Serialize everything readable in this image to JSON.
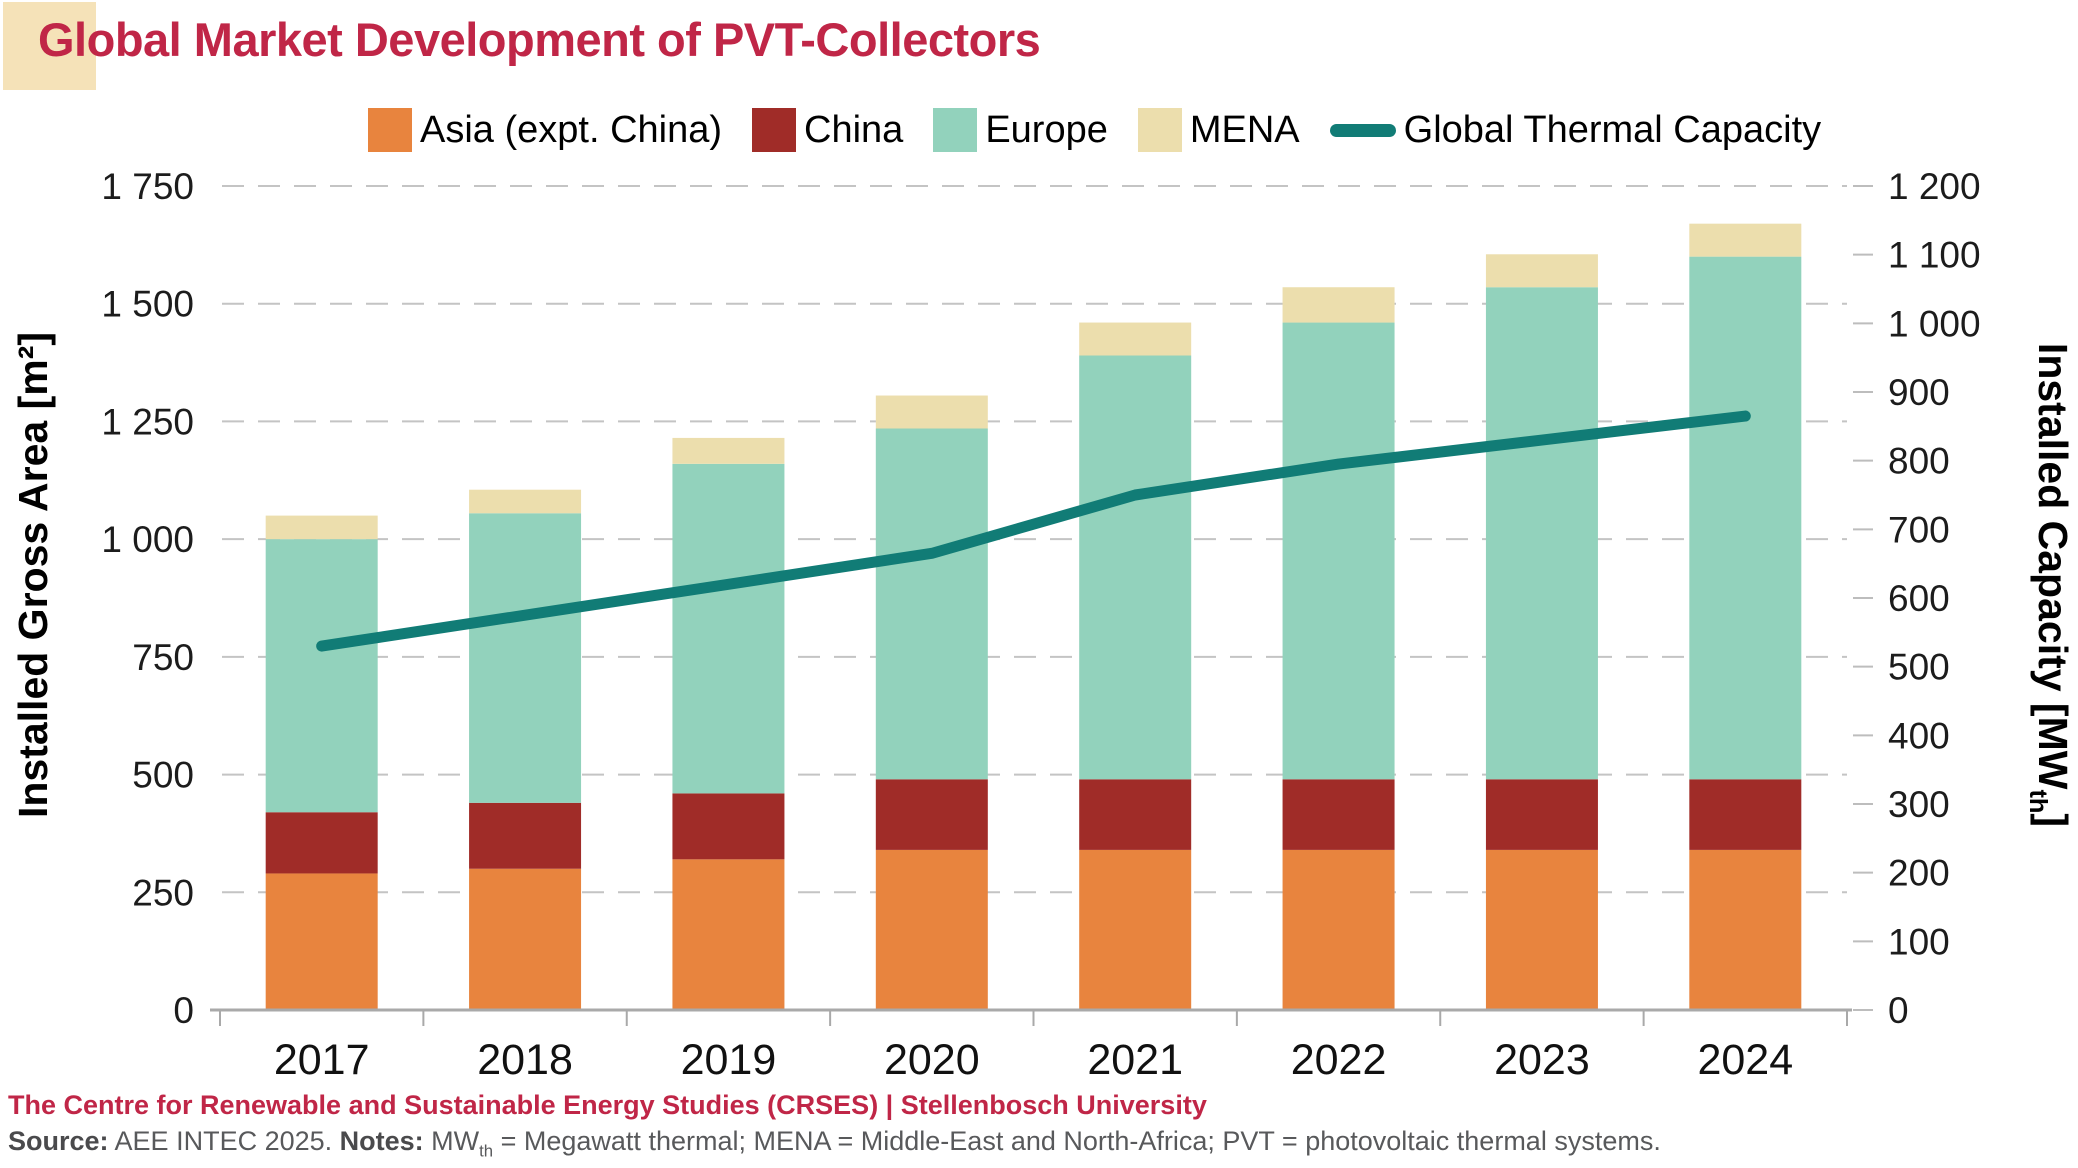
{
  "header": {
    "title": "Global Market Development of PVT-Collectors",
    "title_color": "#C02647",
    "accent_square_color": "#F5E2B8"
  },
  "legend": {
    "items": [
      {
        "label": "Asia (expt. China)",
        "color": "#E8843E",
        "type": "box"
      },
      {
        "label": "China",
        "color": "#A02C28",
        "type": "box"
      },
      {
        "label": "Europe",
        "color": "#92D2BC",
        "type": "box"
      },
      {
        "label": "MENA",
        "color": "#ECDEAD",
        "type": "box"
      },
      {
        "label": "Global Thermal Capacity",
        "color": "#117C76",
        "type": "line"
      }
    ]
  },
  "chart_data": {
    "type": "bar",
    "stacked": true,
    "grid": true,
    "legend_position": "top",
    "categories": [
      "2017",
      "2018",
      "2019",
      "2020",
      "2021",
      "2022",
      "2023",
      "2024"
    ],
    "series": [
      {
        "name": "Asia (expt. China)",
        "color": "#E8843E",
        "values": [
          290,
          300,
          320,
          340,
          340,
          340,
          340,
          340
        ]
      },
      {
        "name": "China",
        "color": "#A02C28",
        "values": [
          130,
          140,
          140,
          150,
          150,
          150,
          150,
          150
        ]
      },
      {
        "name": "Europe",
        "color": "#92D2BC",
        "values": [
          580,
          615,
          700,
          745,
          900,
          970,
          1045,
          1110
        ]
      },
      {
        "name": "MENA",
        "color": "#ECDEAD",
        "values": [
          50,
          50,
          55,
          70,
          70,
          75,
          70,
          70
        ]
      }
    ],
    "bar_totals": [
      1050,
      1105,
      1215,
      1305,
      1460,
      1535,
      1605,
      1670
    ],
    "line_series": {
      "name": "Global Thermal Capacity",
      "color": "#117C76",
      "axis": "right",
      "values": [
        530,
        575,
        620,
        665,
        750,
        795,
        830,
        865
      ]
    },
    "left_axis": {
      "title": "Installed Gross Area [m²]",
      "min": 0,
      "max": 1750,
      "step": 250,
      "tick_labels": [
        "0",
        "250",
        "500",
        "750",
        "1 000",
        "1 250",
        "1 500",
        "1 750"
      ]
    },
    "right_axis": {
      "title_pre": "Installed Capacity [MW",
      "title_sub": "th",
      "title_post": "]",
      "min": 0,
      "max": 1200,
      "step": 100,
      "tick_labels": [
        "0",
        "100",
        "200",
        "300",
        "400",
        "500",
        "600",
        "700",
        "800",
        "900",
        "1 000",
        "1 100",
        "1 200"
      ]
    },
    "colors": {
      "gridline": "#C4C4C4",
      "axis_line": "#A9A9A9",
      "tick_label": "#1C1C1C"
    }
  },
  "footer": {
    "line1": "The Centre for Renewable and Sustainable Energy Studies (CRSES) | Stellenbosch University",
    "line1_color": "#C02647",
    "source_label": "Source:",
    "source_text": " AEE INTEC 2025. ",
    "notes_label": "Notes:",
    "notes_text_pre": " MW",
    "notes_sub": "th",
    "notes_text_post": " = Megawatt thermal; MENA = Middle-East and North-Africa; PVT = photovoltaic thermal systems."
  }
}
